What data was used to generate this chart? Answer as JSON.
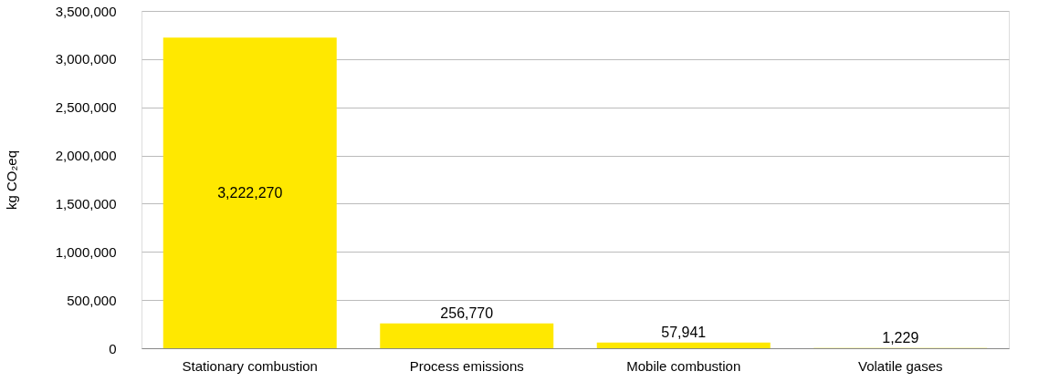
{
  "chart_data": {
    "type": "bar",
    "ylabel": "kg CO₂eq",
    "categories": [
      "Stationary combustion",
      "Process emissions",
      "Mobile combustion",
      "Volatile gases"
    ],
    "values": [
      3222270,
      256770,
      57941,
      1229
    ],
    "value_labels": [
      "3,222,270",
      "256,770",
      "57,941",
      "1,229"
    ],
    "color": "#ffe800",
    "ylim": [
      0,
      3500000
    ],
    "yticks": [
      0,
      {
        "value": 500000,
        "label": "500,000"
      },
      {
        "value": 1000000,
        "label": "1,000,000"
      },
      {
        "value": 1500000,
        "label": "1,500,000"
      },
      {
        "value": 2000000,
        "label": "2,000,000"
      },
      {
        "value": 2500000,
        "label": "2,500,000"
      },
      {
        "value": 3000000,
        "label": "3,000,000"
      },
      {
        "value": 3500000,
        "label": "3,500,000"
      }
    ],
    "grid": "y"
  }
}
